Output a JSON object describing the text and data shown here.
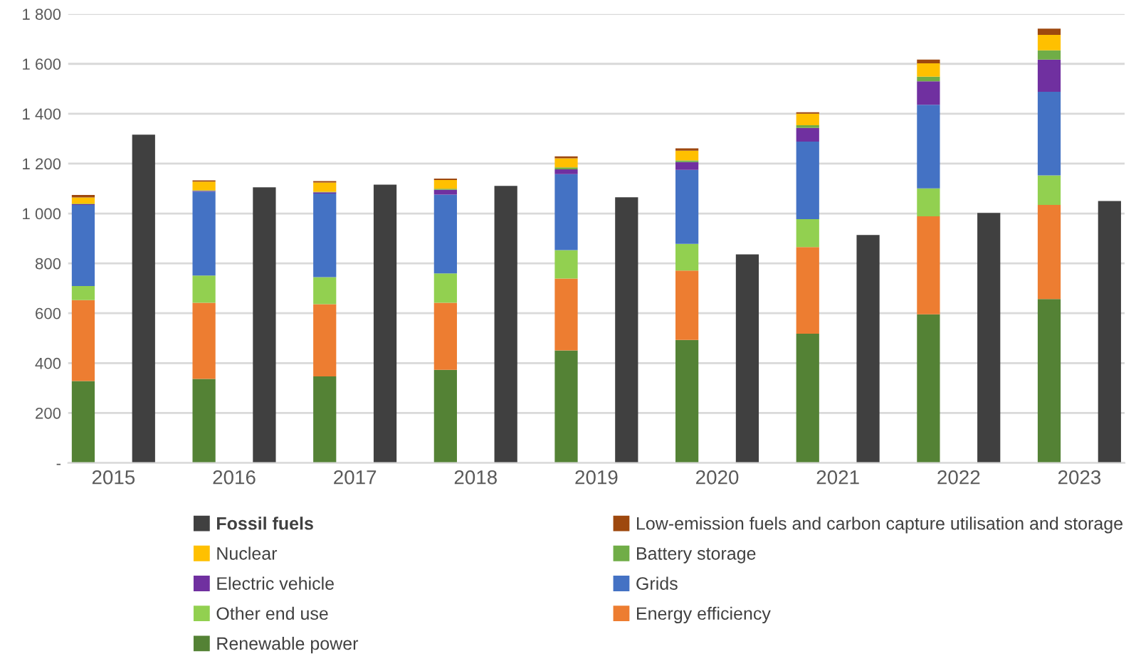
{
  "chart_data": {
    "type": "bar",
    "stacked": true,
    "categories": [
      null,
      "2015",
      null,
      null,
      null,
      "2016",
      null,
      null,
      null,
      "2017",
      null,
      null,
      null,
      "2018",
      null,
      null,
      null,
      "2019",
      null,
      null,
      null,
      "2020",
      null,
      null,
      null,
      "2021",
      null,
      null,
      null,
      "2022",
      null,
      null,
      null,
      "2023",
      null
    ],
    "series": [
      {
        "name": "Renewable power",
        "color": "#548235",
        "values": [
          328,
          null,
          null,
          null,
          337,
          null,
          null,
          null,
          347,
          null,
          null,
          null,
          373,
          null,
          null,
          null,
          451,
          null,
          null,
          null,
          493,
          null,
          null,
          null,
          518,
          null,
          null,
          null,
          596,
          null,
          null,
          null,
          657,
          null,
          null
        ]
      },
      {
        "name": "Energy efficiency",
        "color": "#ed7d31",
        "values": [
          325,
          null,
          null,
          null,
          305,
          null,
          null,
          null,
          289,
          null,
          null,
          null,
          269,
          null,
          null,
          null,
          288,
          null,
          null,
          null,
          278,
          null,
          null,
          null,
          347,
          null,
          null,
          null,
          393,
          null,
          null,
          null,
          377,
          null,
          null
        ]
      },
      {
        "name": "Other end use",
        "color": "#92d050",
        "values": [
          56,
          null,
          null,
          null,
          109,
          null,
          null,
          null,
          109,
          null,
          null,
          null,
          118,
          null,
          null,
          null,
          114,
          null,
          null,
          null,
          107,
          null,
          null,
          null,
          112,
          null,
          null,
          null,
          112,
          null,
          null,
          null,
          119,
          null,
          null
        ]
      },
      {
        "name": "Grids",
        "color": "#4472c4",
        "values": [
          325,
          null,
          null,
          null,
          337,
          null,
          null,
          null,
          335,
          null,
          null,
          null,
          316,
          null,
          null,
          null,
          305,
          null,
          null,
          null,
          297,
          null,
          null,
          null,
          311,
          null,
          null,
          null,
          335,
          null,
          null,
          null,
          335,
          null,
          null
        ]
      },
      {
        "name": "Electric vehicle",
        "color": "#7030a0",
        "values": [
          3,
          null,
          null,
          null,
          3,
          null,
          null,
          null,
          5,
          null,
          null,
          null,
          19,
          null,
          null,
          null,
          19,
          null,
          null,
          null,
          31,
          null,
          null,
          null,
          55,
          null,
          null,
          null,
          94,
          null,
          null,
          null,
          129,
          null,
          null
        ]
      },
      {
        "name": "Battery storage",
        "color": "#70ad47",
        "values": [
          2,
          null,
          null,
          null,
          2,
          null,
          null,
          null,
          2,
          null,
          null,
          null,
          4,
          null,
          null,
          null,
          8,
          null,
          null,
          null,
          7,
          null,
          null,
          null,
          11,
          null,
          null,
          null,
          19,
          null,
          null,
          null,
          37,
          null,
          null
        ]
      },
      {
        "name": "Nuclear",
        "color": "#ffc000",
        "values": [
          25,
          null,
          null,
          null,
          35,
          null,
          null,
          null,
          37,
          null,
          null,
          null,
          35,
          null,
          null,
          null,
          36,
          null,
          null,
          null,
          39,
          null,
          null,
          null,
          46,
          null,
          null,
          null,
          53,
          null,
          null,
          null,
          62,
          null,
          null
        ]
      },
      {
        "name": "Low-emission fuels and carbon capture utilisation and storage",
        "color": "#9e480e",
        "values": [
          10,
          null,
          null,
          null,
          5,
          null,
          null,
          null,
          6,
          null,
          null,
          null,
          6,
          null,
          null,
          null,
          8,
          null,
          null,
          null,
          9,
          null,
          null,
          null,
          6,
          null,
          null,
          null,
          15,
          null,
          null,
          null,
          25,
          null,
          null
        ]
      },
      {
        "name": "Fossil fuels",
        "color": "#404040",
        "values": [
          null,
          null,
          1316,
          null,
          null,
          null,
          1105,
          null,
          null,
          null,
          1116,
          null,
          null,
          null,
          1111,
          null,
          null,
          null,
          1065,
          null,
          null,
          null,
          836,
          null,
          null,
          null,
          914,
          null,
          null,
          null,
          1002,
          null,
          null,
          null,
          1050
        ]
      }
    ],
    "ylim": [
      0,
      1800
    ],
    "yticks": [
      {
        "value": 0,
        "label": "-"
      },
      {
        "value": 200,
        "label": "200"
      },
      {
        "value": 400,
        "label": "400"
      },
      {
        "value": 600,
        "label": "600"
      },
      {
        "value": 800,
        "label": "800"
      },
      {
        "value": 1000,
        "label": "1 000"
      },
      {
        "value": 1200,
        "label": "1 200"
      },
      {
        "value": 1400,
        "label": "1 400"
      },
      {
        "value": 1600,
        "label": "1 600"
      },
      {
        "value": 1800,
        "label": "1 800"
      }
    ],
    "grid": "y",
    "legend": "bottom"
  }
}
